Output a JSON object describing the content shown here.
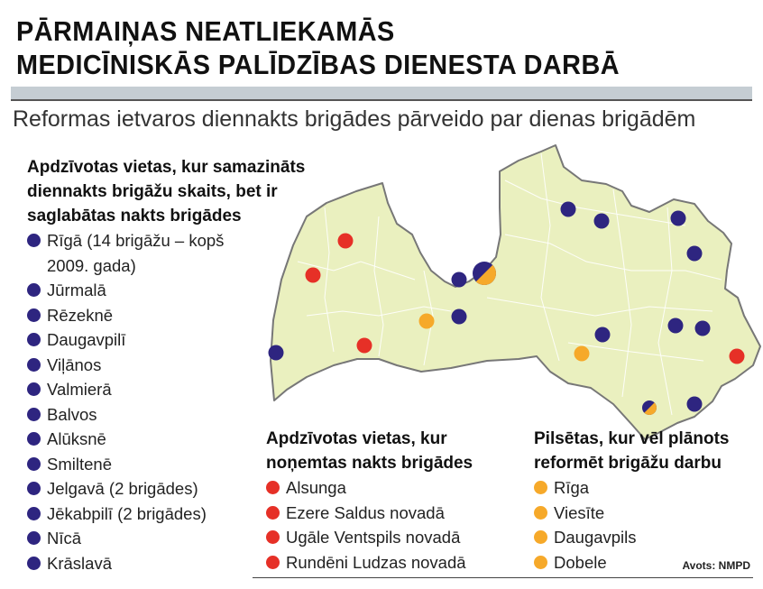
{
  "title": {
    "line1": "PĀRMAIŅAS NEATLIEKAMĀS",
    "line2": "MEDICĪNISKĀS PALĪDZĪBAS DIENESTA DARBĀ"
  },
  "subtitle": "Reformas ietvaros diennakts brigādes pārveido par dienas brigādēm",
  "colors": {
    "reduced_day_night": "#2e2580",
    "night_removed": "#e63027",
    "planned": "#f6a92a",
    "map_fill": "#eaf0bf",
    "border": "#777777"
  },
  "legends": [
    {
      "heading_lines": [
        "Apdzīvotas vietas, kur samazināts",
        "diennakts brigāžu skaits, bet ir",
        "saglabātas nakts brigādes"
      ],
      "color_key": "reduced_day_night",
      "items": [
        "Rīgā (14 brigāžu – kopš",
        "2009. gada)",
        "Jūrmalā",
        "Rēzeknē",
        "Daugavpilī",
        "Viļānos",
        "Valmierā",
        "Balvos",
        "Alūksnē",
        "Smiltenē",
        "Jelgavā (2 brigādes)",
        "Jēkabpilī (2 brigādes)",
        "Nīcā",
        "Krāslavā"
      ]
    },
    {
      "heading_lines": [
        "Apdzīvotas vietas, kur",
        "noņemtas nakts brigādes"
      ],
      "color_key": "night_removed",
      "items": [
        "Alsunga",
        "Ezere Saldus novadā",
        "Ugāle Ventspils novadā",
        "Rundēni Ludzas novadā"
      ]
    },
    {
      "heading_lines": [
        "Pilsētas, kur vēl plānots",
        "reformēt brigāžu darbu"
      ],
      "color_key": "planned",
      "items": [
        "Rīga",
        "Viesīte",
        "Daugavpils",
        "Dobele"
      ]
    }
  ],
  "source": "Avots: NMPD"
}
